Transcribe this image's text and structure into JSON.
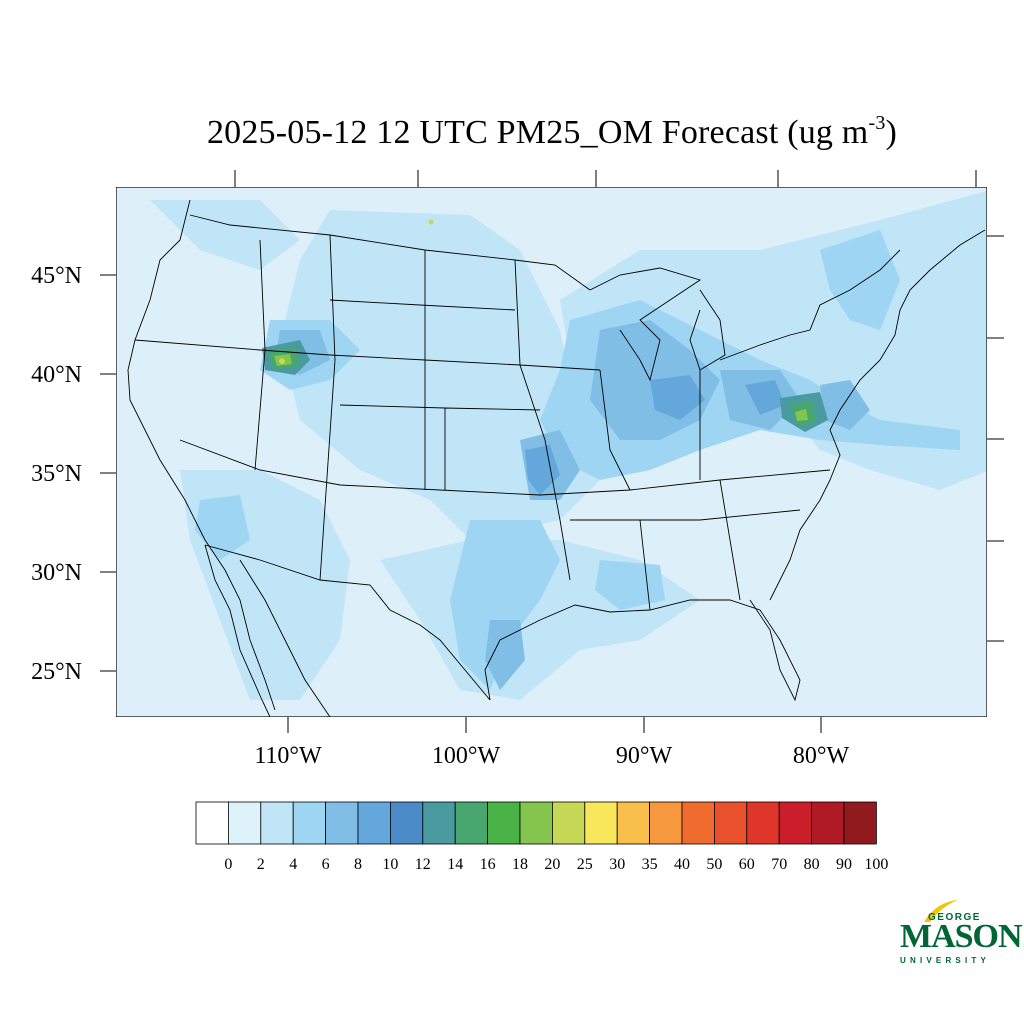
{
  "title": {
    "main": "2025-05-12 12 UTC PM25_OM Forecast (ug m",
    "superscript": "-3",
    "close": ")"
  },
  "map": {
    "lat_labels": [
      "45°N",
      "40°N",
      "35°N",
      "30°N",
      "25°N"
    ],
    "lon_labels": [
      "110°W",
      "100°W",
      "90°W",
      "80°W"
    ],
    "background_color": "#ddf0fa"
  },
  "colorbar": {
    "labels": [
      "0",
      "2",
      "4",
      "6",
      "8",
      "10",
      "12",
      "14",
      "16",
      "18",
      "20",
      "25",
      "30",
      "35",
      "40",
      "50",
      "60",
      "70",
      "80",
      "90",
      "100"
    ],
    "colors": [
      "#ffffff",
      "#def2fa",
      "#bfe5f7",
      "#9dd5f2",
      "#80bee6",
      "#64a7da",
      "#4a8bc8",
      "#4a9b9f",
      "#48a66f",
      "#4ab348",
      "#84c54d",
      "#c6d957",
      "#f8e75a",
      "#f8bf4a",
      "#f6983e",
      "#f06c2e",
      "#e9512c",
      "#de362a",
      "#ca1f2a",
      "#b01a24",
      "#911a1f"
    ]
  },
  "logo": {
    "line1": "GEORGE",
    "line2": "MASON",
    "line3": "UNIVERSITY",
    "color": "#006633",
    "accent": "#f2c500"
  }
}
